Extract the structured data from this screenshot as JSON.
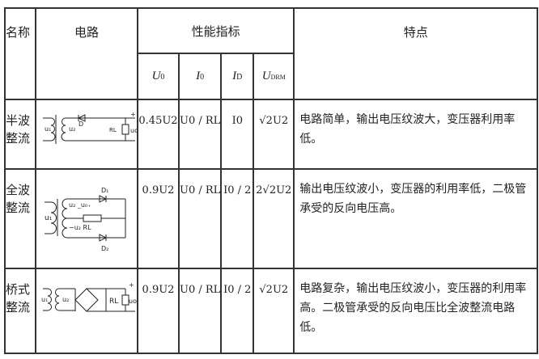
{
  "header": {
    "name": "名称",
    "circuit": "电路",
    "metrics": "性能指标",
    "features": "特点",
    "sub": [
      "U0",
      "I0",
      "ID",
      "UDRM"
    ]
  },
  "rows": [
    {
      "name1": "半波",
      "name2": "整流",
      "u0": "0.45U2",
      "i0": "U0 / RL",
      "id": "I0",
      "udrm": "√2U2",
      "feature": "电路简单，输出电压纹波大，变压器利用率低。"
    },
    {
      "name1": "全波",
      "name2": "整流",
      "u0": "0.9U2",
      "i0": "U0 / RL",
      "id": "I0 / 2",
      "udrm": "2√2U2",
      "feature": "输出电压纹波小，变压器的利用率低，二极管承受的反向电压高。"
    },
    {
      "name1": "桥式",
      "name2": "整流",
      "u0": "0.9U2",
      "i0": "U0 / RL",
      "id": "I0 / 2",
      "udrm": "√2U2",
      "feature": "电路复杂，输出电压纹波小，变压器的利用率高。二极管承受的反向电压比全波整流电路低。"
    }
  ]
}
